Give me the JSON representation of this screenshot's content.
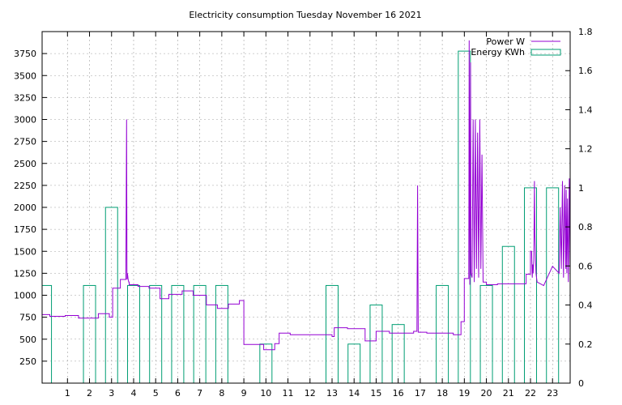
{
  "chart_data": {
    "type": "line",
    "title": "Electricity consumption Tuesday November 16 2021",
    "xlabel": "",
    "ylabel": "",
    "y2label": "",
    "grid": true,
    "legend_position": "top-right",
    "colors": {
      "power": "#9400d3",
      "energy": "#009e73",
      "grid": "#a0a0a0",
      "axis": "#000000"
    },
    "x_ticks": [
      1,
      2,
      3,
      4,
      5,
      6,
      7,
      8,
      9,
      10,
      11,
      12,
      13,
      14,
      15,
      16,
      17,
      18,
      19,
      20,
      21,
      22,
      23
    ],
    "xlim": [
      -0.15,
      23.8
    ],
    "y_ticks": [
      250,
      500,
      750,
      1000,
      1250,
      1500,
      1750,
      2000,
      2250,
      2500,
      2750,
      3000,
      3250,
      3500,
      3750
    ],
    "ylim": [
      0,
      4000
    ],
    "y2_ticks": [
      "0",
      "0.2",
      "0.4",
      "0.6",
      "0.8",
      "1",
      "1.2",
      "1.4",
      "1.6",
      "1.8"
    ],
    "y2_tick_values": [
      0,
      0.2,
      0.4,
      0.6,
      0.8,
      1.0,
      1.2,
      1.4,
      1.6,
      1.8
    ],
    "y2lim": [
      0,
      1.8
    ],
    "series": [
      {
        "name": "Power W",
        "style": "steps",
        "x": [
          -0.15,
          0.2,
          0.2,
          0.9,
          0.9,
          1.5,
          1.5,
          2.4,
          2.4,
          2.9,
          2.9,
          3.05,
          3.05,
          3.4,
          3.4,
          3.65,
          3.68,
          3.7,
          3.72,
          3.75,
          3.78,
          3.8,
          3.8,
          4.2,
          4.2,
          4.7,
          4.7,
          5.2,
          5.2,
          5.6,
          5.6,
          6.2,
          6.2,
          6.7,
          6.7,
          7.3,
          7.3,
          7.8,
          7.8,
          8.3,
          8.3,
          8.8,
          8.8,
          9.0,
          9.0,
          9.9,
          9.9,
          10.4,
          10.4,
          10.6,
          10.6,
          11.1,
          11.1,
          13.0,
          13.0,
          13.1,
          13.1,
          13.7,
          13.7,
          14.5,
          14.5,
          15.0,
          15.0,
          15.6,
          15.6,
          16.7,
          16.7,
          16.85,
          16.88,
          16.91,
          16.94,
          17.3,
          17.3,
          18.5,
          18.5,
          18.85,
          18.85,
          19.0,
          19.0,
          19.2,
          19.22,
          19.25,
          19.28,
          19.3,
          19.35,
          19.4,
          19.45,
          19.5,
          19.55,
          19.6,
          19.65,
          19.7,
          19.75,
          19.8,
          19.85,
          19.9,
          19.95,
          20.0,
          20.0,
          20.5,
          20.5,
          21.8,
          21.8,
          22.0,
          22.0,
          22.05,
          22.08,
          22.1,
          22.12,
          22.15,
          22.18,
          22.2,
          22.25,
          22.3,
          22.3,
          22.6,
          22.6,
          23.0,
          23.0,
          23.3,
          23.35,
          23.4,
          23.45,
          23.5,
          23.55,
          23.6,
          23.62,
          23.65,
          23.68,
          23.72,
          23.76,
          23.8
        ],
        "values": [
          780,
          780,
          760,
          760,
          770,
          770,
          740,
          740,
          790,
          790,
          750,
          750,
          1080,
          1080,
          1180,
          1180,
          3000,
          1180,
          1250,
          1180,
          1150,
          1150,
          1120,
          1120,
          1100,
          1100,
          1080,
          1080,
          960,
          960,
          1010,
          1010,
          1050,
          1050,
          1000,
          1000,
          890,
          890,
          850,
          850,
          900,
          900,
          940,
          940,
          440,
          440,
          380,
          380,
          450,
          450,
          570,
          570,
          550,
          550,
          530,
          530,
          630,
          630,
          620,
          620,
          480,
          480,
          590,
          590,
          570,
          570,
          590,
          590,
          2250,
          580,
          580,
          580,
          570,
          570,
          550,
          550,
          700,
          700,
          1190,
          1190,
          3900,
          1120,
          3650,
          1250,
          1200,
          3000,
          1150,
          3000,
          1300,
          2850,
          1200,
          3000,
          1300,
          2600,
          1150,
          1150,
          1150,
          1150,
          1120,
          1120,
          1130,
          1130,
          1240,
          1240,
          1500,
          1500,
          1200,
          1350,
          1250,
          1400,
          2300,
          1700,
          1250,
          1150,
          1150,
          1110,
          1110,
          1330,
          1330,
          1250,
          2000,
          1300,
          2300,
          1200,
          2250,
          1300,
          2200,
          1250,
          2100,
          1150,
          2330,
          1200
        ]
      },
      {
        "name": "Energy KWh",
        "style": "boxes",
        "x": [
          0,
          1,
          2,
          3,
          4,
          5,
          6,
          7,
          8,
          9,
          10,
          11,
          12,
          13,
          14,
          15,
          16,
          17,
          18,
          19,
          20,
          21,
          22,
          23
        ],
        "values": [
          0.5,
          0.0,
          0.5,
          0.9,
          0.5,
          0.5,
          0.5,
          0.5,
          0.5,
          0.0,
          0.2,
          0.0,
          0.0,
          0.5,
          0.2,
          0.4,
          0.3,
          0.0,
          0.5,
          1.7,
          0.5,
          0.7,
          1.0,
          1.0
        ]
      }
    ]
  }
}
